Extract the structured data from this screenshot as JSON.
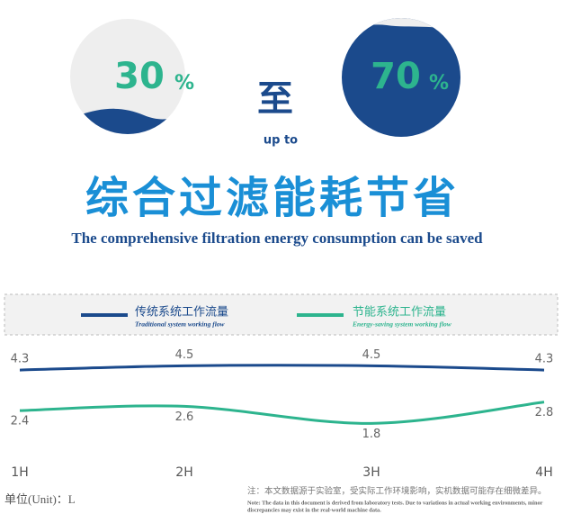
{
  "header": {
    "low": {
      "number": "30",
      "unit": "%"
    },
    "high": {
      "number": "70",
      "unit": "%"
    },
    "connector": "至",
    "connector_en": "up to",
    "title": "综合过滤能耗节省",
    "subtitle": "The comprehensive filtration energy consumption can be saved"
  },
  "chart_data": {
    "type": "line",
    "categories": [
      "1H",
      "2H",
      "3H",
      "4H"
    ],
    "series": [
      {
        "name": "传统系统工作流量",
        "name_en": "Traditional system working flow",
        "color": "#1b4a8c",
        "values": [
          4.3,
          4.5,
          4.5,
          4.3
        ]
      },
      {
        "name": "节能系统工作流量",
        "name_en": "Energy-saving system working flow",
        "color": "#2db48e",
        "values": [
          2.4,
          2.6,
          1.8,
          2.8
        ]
      }
    ]
  },
  "footer": {
    "unit": "单位(Unit)：L",
    "note": "注：本文数据源于实验室，受实际工作环境影响，实机数据可能存在细微差异。",
    "note_en": [
      "Note: The data in this document is derived from laboratory tests. Due to variations in actual working environments, minor",
      "discrepancies may exist in the real-world machine data."
    ]
  }
}
